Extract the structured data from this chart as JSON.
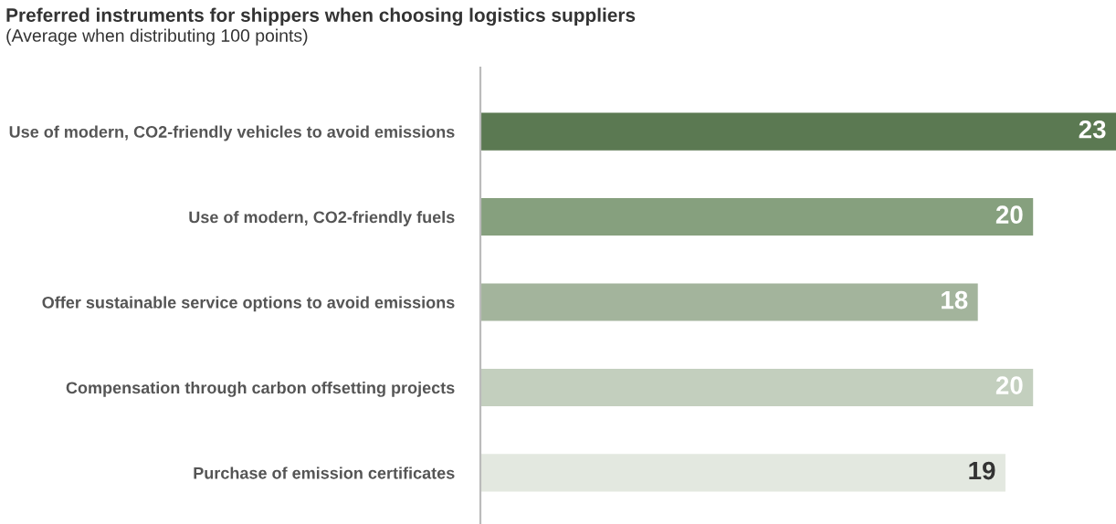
{
  "chart_data": {
    "type": "bar",
    "orientation": "horizontal",
    "title": "Preferred instruments for shippers when choosing logistics suppliers",
    "subtitle": "(Average when distributing 100 points)",
    "categories": [
      "Use of modern, CO2-friendly vehicles to avoid emissions",
      "Use of modern, CO2-friendly fuels",
      "Offer sustainable service options to avoid emissions",
      "Compensation through carbon offsetting projects",
      "Purchase of emission certificates"
    ],
    "values": [
      23,
      20,
      18,
      20,
      19
    ],
    "colors": [
      "#5b7952",
      "#86a07e",
      "#a3b49c",
      "#c3cfbe",
      "#e3e8e0"
    ],
    "data_labels": true,
    "grid": false,
    "legend": false
  }
}
